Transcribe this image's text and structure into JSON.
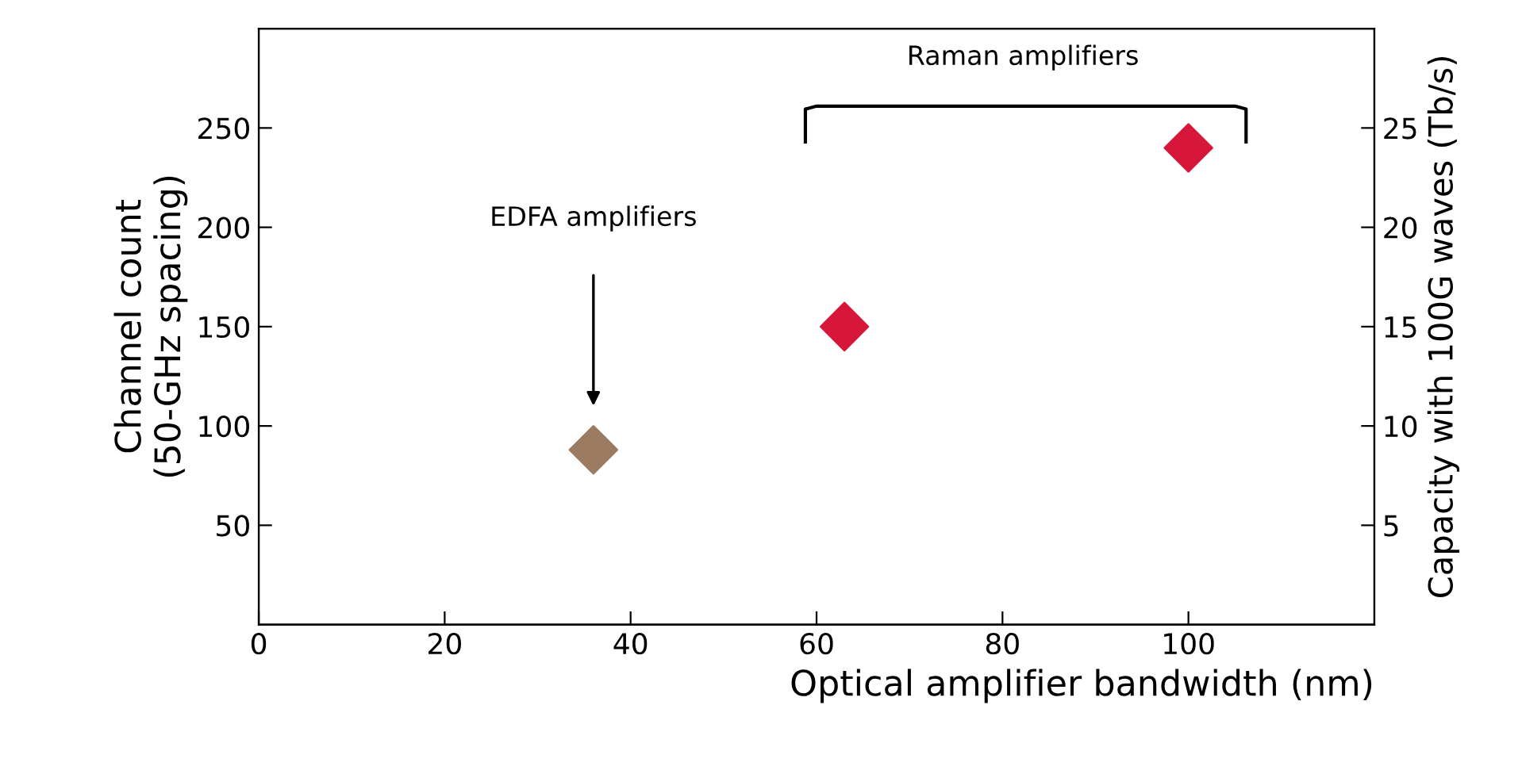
{
  "chart_data": {
    "type": "scatter",
    "xlabel": "Optical amplifier bandwidth (nm)",
    "ylabel": "Channel count\n(50-GHz spacing)",
    "y2label": "Capacity with 100G waves (Tb/s)",
    "series": [
      {
        "color": "#9b7b62",
        "x": [
          36
        ],
        "values": [
          88
        ]
      },
      {
        "color": "#d6173a",
        "x": [
          63,
          100
        ],
        "values": [
          150,
          240
        ]
      }
    ],
    "marker": "diamond",
    "xlim": [
      0,
      120
    ],
    "xticks": [
      0,
      20,
      40,
      60,
      80,
      100
    ],
    "ylim": [
      0,
      300
    ],
    "yticks": [
      50,
      100,
      150,
      200,
      250
    ],
    "y2lim": [
      0,
      30
    ],
    "y2ticks": [
      5,
      10,
      15,
      20,
      25
    ],
    "annotations": [
      "EDFA amplifiers",
      "Raman amplifiers"
    ],
    "grid": false
  }
}
